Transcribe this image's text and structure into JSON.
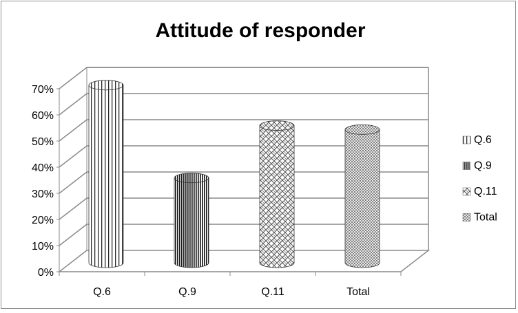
{
  "chart_data": {
    "type": "bar",
    "title": "Attitude of responder",
    "categories": [
      "Q.6",
      "Q.9",
      "Q.11",
      "Total"
    ],
    "values": [
      0.69,
      0.335,
      0.535,
      0.52
    ],
    "y_ticks": [
      "0%",
      "10%",
      "20%",
      "30%",
      "40%",
      "50%",
      "60%",
      "70%"
    ],
    "ylim": [
      0,
      0.7
    ],
    "grid": true,
    "legend_position": "right",
    "legend": [
      "Q.6",
      "Q.9",
      "Q.11",
      "Total"
    ],
    "xlabel": "",
    "ylabel": ""
  }
}
